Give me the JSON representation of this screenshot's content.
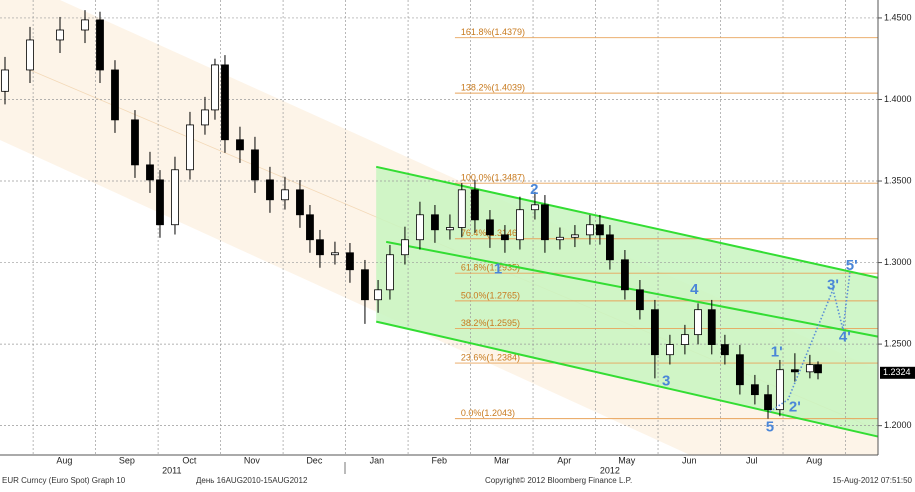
{
  "chart_data": {
    "type": "candlestick",
    "xlim": [
      0.47,
      14.52
    ],
    "ylim": [
      1.182,
      1.461
    ],
    "xgrid": [
      1,
      2,
      3,
      4,
      5,
      6,
      7,
      8,
      9,
      10,
      11,
      12,
      13,
      14
    ],
    "xticks": [
      {
        "value": 1.5,
        "label": "Aug"
      },
      {
        "value": 2.5,
        "label": "Sep"
      },
      {
        "value": 3.5,
        "label": "Oct"
      },
      {
        "value": 4.5,
        "label": "Nov"
      },
      {
        "value": 5.5,
        "label": "Dec"
      },
      {
        "value": 6.5,
        "label": "Jan"
      },
      {
        "value": 7.5,
        "label": "Feb"
      },
      {
        "value": 8.5,
        "label": "Mar"
      },
      {
        "value": 9.5,
        "label": "Apr"
      },
      {
        "value": 10.5,
        "label": "May"
      },
      {
        "value": 11.5,
        "label": "Jun"
      },
      {
        "value": 12.5,
        "label": "Jul"
      },
      {
        "value": 13.5,
        "label": "Aug"
      }
    ],
    "year_ticks": [
      {
        "value": 3.22,
        "label": "2011"
      },
      {
        "value": 10.23,
        "label": "2012"
      }
    ],
    "yticks": [
      {
        "value": 1.2,
        "label": "1.2000"
      },
      {
        "value": 1.25,
        "label": "1.2500"
      },
      {
        "value": 1.3,
        "label": "1.3000"
      },
      {
        "value": 1.35,
        "label": "1.3500"
      },
      {
        "value": 1.4,
        "label": "1.4000"
      },
      {
        "value": 1.45,
        "label": "1.4500"
      }
    ],
    "grid": true,
    "last_price": 1.2324,
    "up_color": "#ffffff",
    "down_color": "#000000",
    "x": [
      0.55,
      0.95,
      1.43,
      1.83,
      2.07,
      2.31,
      2.63,
      2.87,
      3.03,
      3.27,
      3.51,
      3.75,
      3.91,
      4.07,
      4.31,
      4.55,
      4.79,
      5.03,
      5.27,
      5.43,
      5.59,
      5.83,
      6.07,
      6.31,
      6.52,
      6.71,
      6.95,
      7.19,
      7.43,
      7.67,
      7.86,
      8.07,
      8.31,
      8.55,
      8.79,
      9.03,
      9.19,
      9.43,
      9.67,
      9.91,
      10.07,
      10.23,
      10.47,
      10.71,
      10.95,
      11.19,
      11.43,
      11.64,
      11.86,
      12.07,
      12.31,
      12.55,
      12.76,
      12.95,
      13.19,
      13.43,
      13.56
    ],
    "open": [
      1.405,
      1.4181,
      1.4365,
      1.4426,
      1.4488,
      1.4181,
      1.3875,
      1.3599,
      1.3507,
      1.3232,
      1.3569,
      1.3844,
      1.3936,
      1.4212,
      1.3753,
      1.3691,
      1.3507,
      1.3385,
      1.3446,
      1.3293,
      1.314,
      1.3048,
      1.306,
      1.2956,
      1.2772,
      1.2833,
      1.3048,
      1.314,
      1.3293,
      1.3201,
      1.3215,
      1.3446,
      1.3262,
      1.317,
      1.314,
      1.3324,
      1.3354,
      1.314,
      1.3155,
      1.317,
      1.3232,
      1.317,
      1.3017,
      1.2833,
      1.2711,
      1.2435,
      1.2497,
      1.2558,
      1.2711,
      1.2497,
      1.2435,
      1.2251,
      1.219,
      1.2098,
      1.2343,
      1.233,
      1.2374
    ],
    "high": [
      1.4261,
      1.4445,
      1.4506,
      1.4548,
      1.4538,
      1.4241,
      1.3935,
      1.3679,
      1.3567,
      1.3649,
      1.3924,
      1.4016,
      1.425,
      1.4272,
      1.3833,
      1.3771,
      1.3587,
      1.3526,
      1.3506,
      1.3353,
      1.32,
      1.3128,
      1.312,
      1.3016,
      1.2893,
      1.3108,
      1.322,
      1.3373,
      1.3353,
      1.3295,
      1.3487,
      1.3506,
      1.3322,
      1.323,
      1.3404,
      1.3434,
      1.3414,
      1.3215,
      1.323,
      1.3292,
      1.3292,
      1.323,
      1.3077,
      1.2893,
      1.2771,
      1.2557,
      1.2618,
      1.275,
      1.2771,
      1.2557,
      1.2495,
      1.2311,
      1.225,
      1.2403,
      1.2444,
      1.2434,
      1.2394
    ],
    "low": [
      1.397,
      1.4101,
      1.4285,
      1.4346,
      1.4101,
      1.3795,
      1.3519,
      1.3427,
      1.3152,
      1.3172,
      1.3509,
      1.3784,
      1.3876,
      1.3673,
      1.3611,
      1.3427,
      1.3305,
      1.3325,
      1.3213,
      1.306,
      1.2968,
      1.2988,
      1.2876,
      1.2624,
      1.2692,
      1.2773,
      1.2988,
      1.308,
      1.3121,
      1.3141,
      1.3155,
      1.3182,
      1.309,
      1.306,
      1.308,
      1.3264,
      1.306,
      1.308,
      1.3095,
      1.311,
      1.311,
      1.2957,
      1.2773,
      1.2651,
      1.229,
      1.2375,
      1.2437,
      1.2498,
      1.2437,
      1.2375,
      1.2191,
      1.213,
      1.2043,
      1.2058,
      1.227,
      1.229,
      1.2284
    ],
    "close": [
      1.4181,
      1.4365,
      1.4426,
      1.4488,
      1.4181,
      1.3875,
      1.3599,
      1.3507,
      1.3232,
      1.3569,
      1.3844,
      1.3936,
      1.4212,
      1.3753,
      1.3691,
      1.3507,
      1.3385,
      1.3446,
      1.3293,
      1.314,
      1.3048,
      1.306,
      1.2956,
      1.2772,
      1.2833,
      1.3048,
      1.314,
      1.3293,
      1.3201,
      1.3215,
      1.3446,
      1.3262,
      1.317,
      1.314,
      1.3324,
      1.3354,
      1.314,
      1.3155,
      1.317,
      1.3232,
      1.317,
      1.3017,
      1.2833,
      1.2711,
      1.2435,
      1.2497,
      1.2558,
      1.2711,
      1.2497,
      1.2435,
      1.2251,
      1.219,
      1.2098,
      1.2343,
      1.233,
      1.2374,
      1.2324
    ],
    "fib_start": 7.75,
    "fib_levels": [
      {
        "value": 1.4379,
        "label": "161.8%(1.4379)"
      },
      {
        "value": 1.4039,
        "label": "138.2%(1.4039)"
      },
      {
        "value": 1.3487,
        "label": "100.0%(1.3487)"
      },
      {
        "value": 1.3146,
        "label": "76.4%(1.3146)"
      },
      {
        "value": 1.2935,
        "label": "61.8%(1.2935)"
      },
      {
        "value": 1.2765,
        "label": "50.0%(1.2765)"
      },
      {
        "value": 1.2595,
        "label": "38.2%(1.2595)"
      },
      {
        "value": 1.2384,
        "label": "23.6%(1.2384)"
      },
      {
        "value": 1.2043,
        "label": "0.0%(1.2043)"
      }
    ],
    "fib_color": "#e8a35a",
    "channel_color": "#33dd33",
    "channels": [
      {
        "x": [
          6.49,
          14.52
        ],
        "y": [
          1.3587,
          1.2907
        ]
      },
      {
        "x": [
          6.65,
          14.52
        ],
        "y": [
          1.3127,
          1.2546
        ]
      },
      {
        "x": [
          6.49,
          14.52
        ],
        "y": [
          1.2638,
          1.1933
        ]
      }
    ],
    "projection": {
      "x": [
        12.79,
        13.08,
        13.8,
        13.96,
        14.07
      ],
      "y": [
        1.2086,
        1.216,
        1.2834,
        1.2589,
        1.2938
      ]
    },
    "waves": [
      {
        "text": "1",
        "x": 8.44,
        "y": 1.2956
      },
      {
        "text": "2",
        "x": 9.02,
        "y": 1.3446
      },
      {
        "text": "3",
        "x": 11.13,
        "y": 1.227
      },
      {
        "text": "4",
        "x": 11.58,
        "y": 1.2833
      },
      {
        "text": "5",
        "x": 12.79,
        "y": 1.1988
      },
      {
        "text": "1'",
        "x": 12.9,
        "y": 1.2447
      },
      {
        "text": "2'",
        "x": 13.19,
        "y": 1.211
      },
      {
        "text": "3'",
        "x": 13.8,
        "y": 1.2858
      },
      {
        "text": "4'",
        "x": 13.99,
        "y": 1.254
      },
      {
        "text": "5'",
        "x": 14.1,
        "y": 1.298
      }
    ]
  },
  "footer": {
    "left": "EUR Curncy (Euro Spot) Graph 10",
    "range": "День 16AUG2010-15AUG2012",
    "copyright": "Copyright© 2012 Bloomberg Finance L.P.",
    "timestamp": "15-Aug-2012 07:51:50"
  }
}
